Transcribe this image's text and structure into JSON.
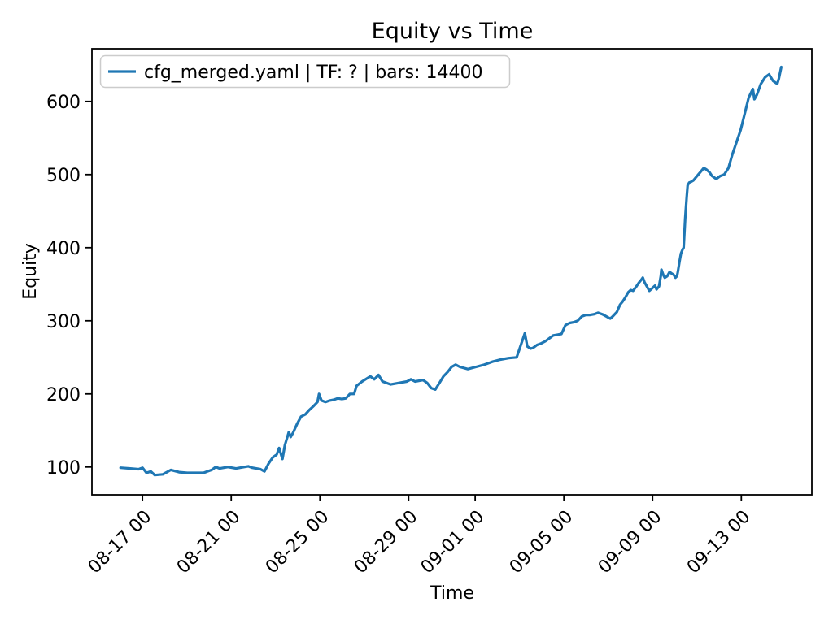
{
  "chart_data": {
    "type": "line",
    "title": "Equity vs Time",
    "xlabel": "Time",
    "ylabel": "Equity",
    "grid": false,
    "legend_position": "upper left",
    "background_color": "#ffffff",
    "spine_color": "#000000",
    "legend_border_color": "#cccccc",
    "x_unit": "days since 08-16 00:00",
    "xlim_days": [
      -1.28,
      31.18
    ],
    "ylim": [
      62,
      672
    ],
    "y_ticks": [
      100,
      200,
      300,
      400,
      500,
      600
    ],
    "x_ticks": [
      {
        "day": 1,
        "label": "08-17 00"
      },
      {
        "day": 5,
        "label": "08-21 00"
      },
      {
        "day": 9,
        "label": "08-25 00"
      },
      {
        "day": 13,
        "label": "08-29 00"
      },
      {
        "day": 16,
        "label": "09-01 00"
      },
      {
        "day": 20,
        "label": "09-05 00"
      },
      {
        "day": 24,
        "label": "09-09 00"
      },
      {
        "day": 28,
        "label": "09-13 00"
      }
    ],
    "series": [
      {
        "name": "cfg_merged.yaml | TF: ? | bars: 14400",
        "color": "#1f77b4",
        "points": [
          [
            0.01,
            99
          ],
          [
            0.45,
            98
          ],
          [
            0.82,
            97
          ],
          [
            1.0,
            99
          ],
          [
            1.18,
            92
          ],
          [
            1.37,
            94
          ],
          [
            1.55,
            89
          ],
          [
            1.92,
            90
          ],
          [
            2.28,
            96
          ],
          [
            2.65,
            93
          ],
          [
            3.02,
            92
          ],
          [
            3.38,
            92
          ],
          [
            3.75,
            92
          ],
          [
            4.12,
            96
          ],
          [
            4.3,
            100
          ],
          [
            4.48,
            98
          ],
          [
            4.85,
            100
          ],
          [
            5.22,
            98
          ],
          [
            5.58,
            100
          ],
          [
            5.77,
            101
          ],
          [
            5.95,
            99
          ],
          [
            6.32,
            97
          ],
          [
            6.5,
            94
          ],
          [
            6.69,
            105
          ],
          [
            6.87,
            113
          ],
          [
            7.05,
            117
          ],
          [
            7.16,
            126
          ],
          [
            7.31,
            111
          ],
          [
            7.42,
            130
          ],
          [
            7.6,
            148
          ],
          [
            7.68,
            141
          ],
          [
            7.79,
            147
          ],
          [
            7.97,
            159
          ],
          [
            8.15,
            169
          ],
          [
            8.34,
            172
          ],
          [
            8.52,
            178
          ],
          [
            8.7,
            183
          ],
          [
            8.89,
            189
          ],
          [
            8.96,
            200
          ],
          [
            9.07,
            191
          ],
          [
            9.25,
            189
          ],
          [
            9.44,
            191
          ],
          [
            9.62,
            192
          ],
          [
            9.8,
            194
          ],
          [
            9.99,
            193
          ],
          [
            10.17,
            194
          ],
          [
            10.35,
            200
          ],
          [
            10.54,
            200
          ],
          [
            10.65,
            211
          ],
          [
            10.9,
            217
          ],
          [
            11.27,
            224
          ],
          [
            11.45,
            220
          ],
          [
            11.64,
            226
          ],
          [
            11.82,
            217
          ],
          [
            12.19,
            213
          ],
          [
            12.55,
            215
          ],
          [
            12.92,
            217
          ],
          [
            13.1,
            220
          ],
          [
            13.29,
            217
          ],
          [
            13.65,
            219
          ],
          [
            13.84,
            215
          ],
          [
            14.02,
            208
          ],
          [
            14.2,
            206
          ],
          [
            14.39,
            215
          ],
          [
            14.57,
            224
          ],
          [
            14.76,
            230
          ],
          [
            14.94,
            237
          ],
          [
            15.12,
            240
          ],
          [
            15.31,
            237
          ],
          [
            15.67,
            234
          ],
          [
            16.04,
            237
          ],
          [
            16.41,
            240
          ],
          [
            16.77,
            244
          ],
          [
            17.14,
            247
          ],
          [
            17.51,
            249
          ],
          [
            17.87,
            250
          ],
          [
            18.24,
            283
          ],
          [
            18.35,
            265
          ],
          [
            18.5,
            262
          ],
          [
            18.61,
            263
          ],
          [
            18.79,
            267
          ],
          [
            18.97,
            269
          ],
          [
            19.16,
            272
          ],
          [
            19.34,
            276
          ],
          [
            19.52,
            280
          ],
          [
            19.71,
            281
          ],
          [
            19.89,
            282
          ],
          [
            20.07,
            294
          ],
          [
            20.26,
            297
          ],
          [
            20.44,
            298
          ],
          [
            20.62,
            300
          ],
          [
            20.81,
            306
          ],
          [
            20.99,
            308
          ],
          [
            21.18,
            308
          ],
          [
            21.36,
            309
          ],
          [
            21.54,
            311
          ],
          [
            21.73,
            309
          ],
          [
            21.91,
            306
          ],
          [
            22.09,
            303
          ],
          [
            22.2,
            306
          ],
          [
            22.39,
            312
          ],
          [
            22.53,
            322
          ],
          [
            22.64,
            326
          ],
          [
            22.75,
            331
          ],
          [
            22.9,
            339
          ],
          [
            23.01,
            342
          ],
          [
            23.12,
            341
          ],
          [
            23.27,
            347
          ],
          [
            23.38,
            352
          ],
          [
            23.49,
            356
          ],
          [
            23.56,
            359
          ],
          [
            23.63,
            353
          ],
          [
            23.74,
            347
          ],
          [
            23.85,
            341
          ],
          [
            24.0,
            345
          ],
          [
            24.11,
            348
          ],
          [
            24.18,
            343
          ],
          [
            24.29,
            347
          ],
          [
            24.37,
            361
          ],
          [
            24.4,
            370
          ],
          [
            24.48,
            363
          ],
          [
            24.55,
            359
          ],
          [
            24.66,
            361
          ],
          [
            24.77,
            367
          ],
          [
            24.84,
            365
          ],
          [
            24.95,
            363
          ],
          [
            25.03,
            359
          ],
          [
            25.1,
            361
          ],
          [
            25.14,
            367
          ],
          [
            25.21,
            380
          ],
          [
            25.28,
            392
          ],
          [
            25.36,
            398
          ],
          [
            25.4,
            400
          ],
          [
            25.47,
            440
          ],
          [
            25.54,
            470
          ],
          [
            25.58,
            485
          ],
          [
            25.65,
            489
          ],
          [
            25.73,
            490
          ],
          [
            25.84,
            492
          ],
          [
            25.95,
            496
          ],
          [
            26.06,
            500
          ],
          [
            26.2,
            505
          ],
          [
            26.31,
            509
          ],
          [
            26.42,
            507
          ],
          [
            26.57,
            503
          ],
          [
            26.68,
            498
          ],
          [
            26.87,
            494
          ],
          [
            27.05,
            498
          ],
          [
            27.23,
            500
          ],
          [
            27.42,
            509
          ],
          [
            27.6,
            528
          ],
          [
            27.78,
            544
          ],
          [
            27.97,
            561
          ],
          [
            28.15,
            583
          ],
          [
            28.33,
            605
          ],
          [
            28.44,
            612
          ],
          [
            28.52,
            617
          ],
          [
            28.59,
            603
          ],
          [
            28.7,
            609
          ],
          [
            28.88,
            624
          ],
          [
            29.07,
            633
          ],
          [
            29.25,
            637
          ],
          [
            29.43,
            628
          ],
          [
            29.62,
            624
          ],
          [
            29.69,
            631
          ],
          [
            29.8,
            647
          ]
        ]
      }
    ]
  }
}
